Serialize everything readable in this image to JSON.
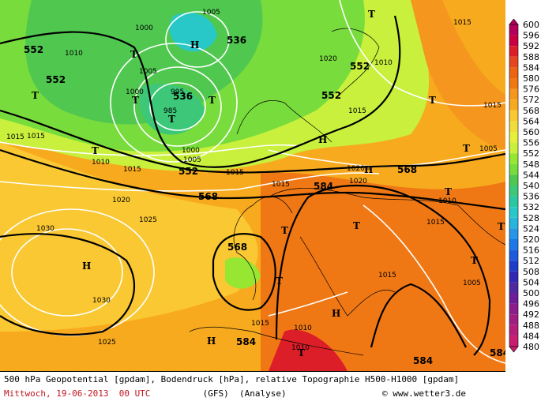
{
  "title": "500 hPa Geopotential [gpdam], Bodendruck [hPa], relative Topographie H500-H1000 [gpdam]",
  "date": "Mittwoch, 19-06-2013  00 UTC",
  "model": "(GFS)",
  "run": "(Analyse)",
  "copyright": "© www.wetter3.de",
  "scale": {
    "values": [
      "600",
      "596",
      "592",
      "588",
      "584",
      "580",
      "576",
      "572",
      "568",
      "564",
      "560",
      "556",
      "552",
      "548",
      "544",
      "540",
      "536",
      "532",
      "528",
      "524",
      "520",
      "516",
      "512",
      "508",
      "504",
      "500",
      "496",
      "492",
      "488",
      "484",
      "480"
    ],
    "colors": [
      "#b4005a",
      "#c80040",
      "#dc1e28",
      "#e6461e",
      "#eb6414",
      "#f07814",
      "#f5961e",
      "#f8aa1e",
      "#fac832",
      "#f0dc3c",
      "#e6f03c",
      "#c8f03c",
      "#96e632",
      "#78dc3c",
      "#50c850",
      "#3cc878",
      "#28c8a0",
      "#28c8c8",
      "#28b4dc",
      "#2896e6",
      "#1e78e6",
      "#1e5adc",
      "#1e3cc8",
      "#3228b4",
      "#5028a0",
      "#6e1e96",
      "#8c1e8c",
      "#a01e82",
      "#b41e78",
      "#c81e6e"
    ]
  },
  "isohypse_labels": [
    "552",
    "552",
    "536",
    "536",
    "552",
    "552",
    "552",
    "568",
    "568",
    "584",
    "568",
    "584",
    "584",
    "584"
  ],
  "isobar_labels": [
    "1005",
    "1000",
    "1010",
    "1005",
    "1000",
    "995",
    "985",
    "1000",
    "1005",
    "1010",
    "1015",
    "1015",
    "1020",
    "1025",
    "1030",
    "1030",
    "1025",
    "1015",
    "1020",
    "1015",
    "1020",
    "1015",
    "1010",
    "1015",
    "1015",
    "1005",
    "1015",
    "1010",
    "1020",
    "1015",
    "1010",
    "1015",
    "1010",
    "1005",
    "1015"
  ],
  "pressure_systems": [
    "H",
    "T",
    "T",
    "T",
    "T",
    "H",
    "T",
    "T",
    "T",
    "H",
    "T",
    "T",
    "T",
    "H",
    "H",
    "T",
    "T",
    "T",
    "T",
    "H",
    "T",
    "T"
  ]
}
